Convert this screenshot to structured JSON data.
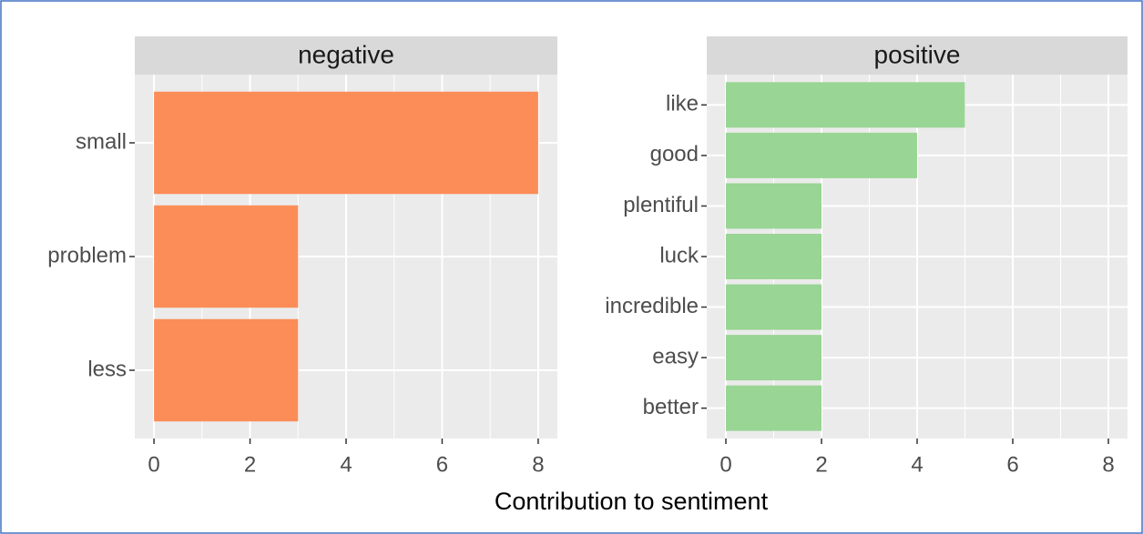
{
  "x_label": "Contribution to sentiment",
  "chart_data": [
    {
      "type": "bar",
      "title": "negative",
      "categories": [
        "small",
        "problem",
        "less"
      ],
      "values": [
        8,
        3,
        3
      ],
      "color": "#fc8d59",
      "xlim": [
        -0.4,
        8.4
      ],
      "xticks": [
        0,
        2,
        4,
        6,
        8
      ],
      "grid": true
    },
    {
      "type": "bar",
      "title": "positive",
      "categories": [
        "like",
        "good",
        "plentiful",
        "luck",
        "incredible",
        "easy",
        "better"
      ],
      "values": [
        5,
        4,
        2,
        2,
        2,
        2,
        2
      ],
      "color": "#99d594",
      "xlim": [
        -0.4,
        8.4
      ],
      "xticks": [
        0,
        2,
        4,
        6,
        8
      ],
      "grid": true
    }
  ]
}
